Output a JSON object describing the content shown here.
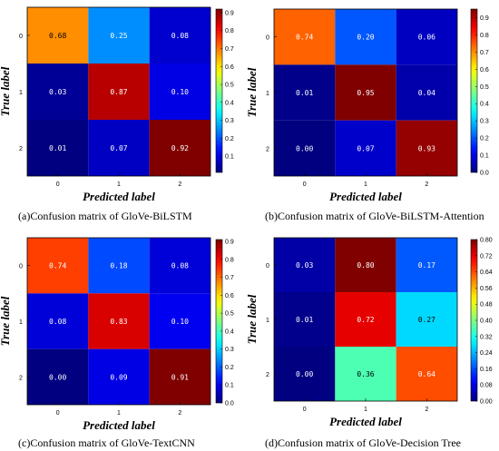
{
  "chart_data": [
    {
      "type": "heatmap",
      "caption": "(a)Confusion matrix of GloVe-BiLSTM",
      "xlabel": "Predicted label",
      "ylabel": "True label",
      "x_ticks": [
        "0",
        "1",
        "2"
      ],
      "y_ticks": [
        "0",
        "1",
        "2"
      ],
      "values": [
        [
          0.68,
          0.25,
          0.08
        ],
        [
          0.03,
          0.87,
          0.1
        ],
        [
          0.01,
          0.07,
          0.92
        ]
      ],
      "value_labels": [
        [
          "0.68",
          "0.25",
          "0.08"
        ],
        [
          "0.03",
          "0.87",
          "0.10"
        ],
        [
          "0.01",
          "0.07",
          "0.92"
        ]
      ],
      "colorbar_range": [
        0.01,
        0.92
      ],
      "colorbar_ticks": [
        "0.1",
        "0.2",
        "0.3",
        "0.4",
        "0.5",
        "0.6",
        "0.7",
        "0.8",
        "0.9"
      ],
      "colorbar_tick_values": [
        0.1,
        0.2,
        0.3,
        0.4,
        0.5,
        0.6,
        0.7,
        0.8,
        0.9
      ],
      "colormap": "jet",
      "grid": false
    },
    {
      "type": "heatmap",
      "caption": "(b)Confusion matrix of GloVe-BiLSTM-Attention",
      "xlabel": "Predicted label",
      "ylabel": "True label",
      "x_ticks": [
        "0",
        "1",
        "2"
      ],
      "y_ticks": [
        "0",
        "1",
        "2"
      ],
      "values": [
        [
          0.74,
          0.2,
          0.06
        ],
        [
          0.01,
          0.95,
          0.04
        ],
        [
          0.0,
          0.07,
          0.93
        ]
      ],
      "value_labels": [
        [
          "0.74",
          "0.20",
          "0.06"
        ],
        [
          "0.01",
          "0.95",
          "0.04"
        ],
        [
          "0.00",
          "0.07",
          "0.93"
        ]
      ],
      "colorbar_range": [
        0.0,
        0.95
      ],
      "colorbar_ticks": [
        "0.0",
        "0.1",
        "0.2",
        "0.3",
        "0.4",
        "0.5",
        "0.6",
        "0.7",
        "0.8",
        "0.9"
      ],
      "colorbar_tick_values": [
        0.0,
        0.1,
        0.2,
        0.3,
        0.4,
        0.5,
        0.6,
        0.7,
        0.8,
        0.9
      ],
      "colormap": "jet",
      "grid": false
    },
    {
      "type": "heatmap",
      "caption": "(c)Confusion matrix of GloVe-TextCNN",
      "xlabel": "Predicted label",
      "ylabel": "True label",
      "x_ticks": [
        "0",
        "1",
        "2"
      ],
      "y_ticks": [
        "0",
        "1",
        "2"
      ],
      "values": [
        [
          0.74,
          0.18,
          0.08
        ],
        [
          0.08,
          0.83,
          0.1
        ],
        [
          0.0,
          0.09,
          0.91
        ]
      ],
      "value_labels": [
        [
          "0.74",
          "0.18",
          "0.08"
        ],
        [
          "0.08",
          "0.83",
          "0.10"
        ],
        [
          "0.00",
          "0.09",
          "0.91"
        ]
      ],
      "colorbar_range": [
        0.0,
        0.91
      ],
      "colorbar_ticks": [
        "0.0",
        "0.1",
        "0.2",
        "0.3",
        "0.4",
        "0.5",
        "0.6",
        "0.7",
        "0.8",
        "0.9"
      ],
      "colorbar_tick_values": [
        0.0,
        0.1,
        0.2,
        0.3,
        0.4,
        0.5,
        0.6,
        0.7,
        0.8,
        0.9
      ],
      "colormap": "jet",
      "grid": false
    },
    {
      "type": "heatmap",
      "caption": "(d)Confusion matrix of GloVe-Decision Tree",
      "xlabel": "Predicted label",
      "ylabel": "True label",
      "x_ticks": [
        "0",
        "1",
        "2"
      ],
      "y_ticks": [
        "0",
        "1",
        "2"
      ],
      "values": [
        [
          0.03,
          0.8,
          0.17
        ],
        [
          0.01,
          0.72,
          0.27
        ],
        [
          0.0,
          0.36,
          0.64
        ]
      ],
      "value_labels": [
        [
          "0.03",
          "0.80",
          "0.17"
        ],
        [
          "0.01",
          "0.72",
          "0.27"
        ],
        [
          "0.00",
          "0.36",
          "0.64"
        ]
      ],
      "colorbar_range": [
        0.0,
        0.8
      ],
      "colorbar_ticks": [
        "0.00",
        "0.08",
        "0.16",
        "0.24",
        "0.32",
        "0.40",
        "0.48",
        "0.56",
        "0.64",
        "0.72",
        "0.80"
      ],
      "colorbar_tick_values": [
        0.0,
        0.08,
        0.16,
        0.24,
        0.32,
        0.4,
        0.48,
        0.56,
        0.64,
        0.72,
        0.8
      ],
      "colormap": "jet",
      "grid": false
    }
  ]
}
